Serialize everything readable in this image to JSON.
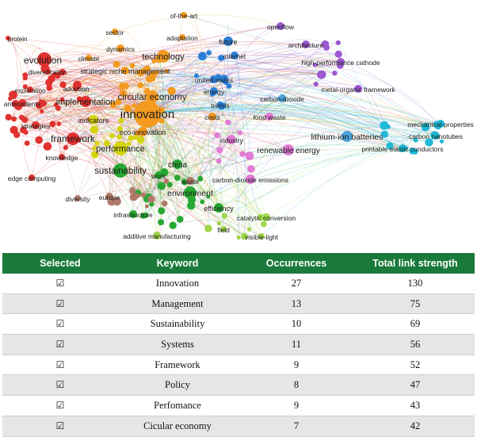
{
  "network": {
    "nodes": [
      {
        "label": "protein",
        "cluster": "red"
      },
      {
        "label": "evolution",
        "cluster": "red"
      },
      {
        "label": "diversification",
        "cluster": "red"
      },
      {
        "label": "exploration",
        "cluster": "red"
      },
      {
        "label": "antecedents",
        "cluster": "red"
      },
      {
        "label": "strategies",
        "cluster": "red"
      },
      {
        "label": "framework",
        "cluster": "red"
      },
      {
        "label": "knowledge",
        "cluster": "red"
      },
      {
        "label": "edge computing",
        "cluster": "red"
      },
      {
        "label": "implementation",
        "cluster": "red"
      },
      {
        "label": "adoption",
        "cluster": "red"
      },
      {
        "label": "indicators",
        "cluster": "yellow"
      },
      {
        "label": "performance",
        "cluster": "yellow"
      },
      {
        "label": "climate",
        "cluster": "orange"
      },
      {
        "label": "dynamics",
        "cluster": "orange"
      },
      {
        "label": "sector",
        "cluster": "orange"
      },
      {
        "label": "strategic niche management",
        "cluster": "orange"
      },
      {
        "label": "technology",
        "cluster": "orange"
      },
      {
        "label": "of-the-art",
        "cluster": "orange"
      },
      {
        "label": "adaptation",
        "cluster": "orange"
      },
      {
        "label": "circular economy",
        "cluster": "orange"
      },
      {
        "label": "innovation",
        "cluster": "orange"
      },
      {
        "label": "eco-innovation",
        "cluster": "orange"
      },
      {
        "label": "costs",
        "cluster": "orange"
      },
      {
        "label": "future",
        "cluster": "blue"
      },
      {
        "label": "internet",
        "cluster": "blue"
      },
      {
        "label": "united states",
        "cluster": "blue"
      },
      {
        "label": "energy",
        "cluster": "blue"
      },
      {
        "label": "trends",
        "cluster": "blue"
      },
      {
        "label": "openflow",
        "cluster": "purple"
      },
      {
        "label": "architecture",
        "cluster": "purple"
      },
      {
        "label": "high-performance cathode",
        "cluster": "purple"
      },
      {
        "label": "metal-organic framework",
        "cluster": "purple"
      },
      {
        "label": "carbon-dioxide",
        "cluster": "lightblue"
      },
      {
        "label": "food waste",
        "cluster": "pink"
      },
      {
        "label": "industry",
        "cluster": "pink"
      },
      {
        "label": "renewable energy",
        "cluster": "pink"
      },
      {
        "label": "lithium-ion batteries",
        "cluster": "lightblue"
      },
      {
        "label": "mechanical-properties",
        "cluster": "cyan"
      },
      {
        "label": "carbon nanotubes",
        "cluster": "cyan"
      },
      {
        "label": "printable elastic conductors",
        "cluster": "cyan"
      },
      {
        "label": "sustainability",
        "cluster": "green"
      },
      {
        "label": "china",
        "cluster": "green"
      },
      {
        "label": "work",
        "cluster": "green"
      },
      {
        "label": "waste",
        "cluster": "brown"
      },
      {
        "label": "environment",
        "cluster": "green"
      },
      {
        "label": "carbon-dioxide emissions",
        "cluster": "pink"
      },
      {
        "label": "diversity",
        "cluster": "brown"
      },
      {
        "label": "europe",
        "cluster": "brown"
      },
      {
        "label": "infrastructure",
        "cluster": "green"
      },
      {
        "label": "efficiency",
        "cluster": "green"
      },
      {
        "label": "catalytic conversion",
        "cluster": "lightgreen"
      },
      {
        "label": "field",
        "cluster": "lightgreen"
      },
      {
        "label": "visible-light",
        "cluster": "lightgreen"
      },
      {
        "label": "additive manufacturing",
        "cluster": "lightgreen"
      }
    ],
    "cluster_colors": {
      "red": "#e0312f",
      "yellow": "#d4d40e",
      "orange": "#f39a1f",
      "blue": "#2b7fd6",
      "purple": "#9b59d0",
      "lightblue": "#4aa3d9",
      "cyan": "#1fb8d6",
      "pink": "#e27ad6",
      "green": "#27a833",
      "lightgreen": "#9fd64a",
      "brown": "#b07a6a"
    }
  },
  "table": {
    "headers": [
      "Selected",
      "Keyword",
      "Occurrences",
      "Total link strength"
    ],
    "check_symbol": "☑",
    "rows": [
      {
        "keyword": "Innovation",
        "occurrences": "27",
        "link_strength": "130"
      },
      {
        "keyword": "Management",
        "occurrences": "13",
        "link_strength": "75"
      },
      {
        "keyword": "Sustainability",
        "occurrences": "10",
        "link_strength": "69"
      },
      {
        "keyword": "Systems",
        "occurrences": "11",
        "link_strength": "56"
      },
      {
        "keyword": "Framework",
        "occurrences": "9",
        "link_strength": "52"
      },
      {
        "keyword": "Policy",
        "occurrences": "8",
        "link_strength": "47"
      },
      {
        "keyword": "Perfomance",
        "occurrences": "9",
        "link_strength": "43"
      },
      {
        "keyword": "Cicular economy",
        "occurrences": "7",
        "link_strength": "42"
      }
    ]
  }
}
